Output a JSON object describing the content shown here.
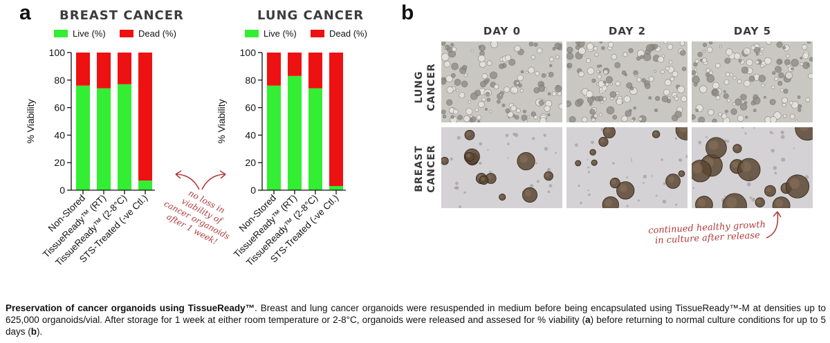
{
  "panel_a": {
    "letter": "a"
  },
  "panel_b": {
    "letter": "b"
  },
  "legend": {
    "live": "Live (%)",
    "dead": "Dead (%)"
  },
  "colors": {
    "live": "#33ee33",
    "dead": "#ee1111",
    "annotation": "#b23a3a"
  },
  "chart_data": [
    {
      "type": "bar",
      "stacked": true,
      "title": "BREAST CANCER",
      "ylabel": "% Viability",
      "ylim": [
        0,
        100
      ],
      "yticks": [
        0,
        20,
        40,
        60,
        80,
        100
      ],
      "categories": [
        "Non-Stored",
        "TissueReady™ (RT)",
        "TissueReady™ (2-8°C)",
        "STS-Treated (-ve Ctl.)"
      ],
      "series": [
        {
          "name": "Live (%)",
          "values": [
            76,
            74,
            77,
            7
          ]
        },
        {
          "name": "Dead (%)",
          "values": [
            24,
            26,
            23,
            93
          ]
        }
      ],
      "legend_position": "top"
    },
    {
      "type": "bar",
      "stacked": true,
      "title": "LUNG CANCER",
      "ylabel": "% Viability",
      "ylim": [
        0,
        100
      ],
      "yticks": [
        0,
        20,
        40,
        60,
        80,
        100
      ],
      "categories": [
        "Non-Stored",
        "TissueReady™ (RT)",
        "TissueReady™ (2-8°C)",
        "STS-Treated (-ve Ctl.)"
      ],
      "series": [
        {
          "name": "Live (%)",
          "values": [
            76,
            83,
            74,
            3
          ]
        },
        {
          "name": "Dead (%)",
          "values": [
            24,
            17,
            26,
            97
          ]
        }
      ],
      "legend_position": "top"
    }
  ],
  "annotations": {
    "viability_note": [
      "no loss in",
      "viability of",
      "cancer organoids",
      "after 1 week!"
    ],
    "growth_note": [
      "continued healthy growth",
      "in culture after release"
    ]
  },
  "micrographs": {
    "days": [
      "DAY 0",
      "DAY 2",
      "DAY 5"
    ],
    "rows": [
      {
        "label_lines": [
          "LUNG",
          "CANCER"
        ]
      },
      {
        "label_lines": [
          "BREAST",
          "CANCER"
        ]
      }
    ]
  },
  "caption": {
    "bold_lead": "Preservation of cancer organoids using TissueReady™",
    "sentence1": ". Breast and lung cancer organoids were resuspended in medium before being encapsulated using TissueReady™-M at densities up to 625,000 organoids/vial. After storage for 1 week at either room temperature or 2-8°C, organoids were released and assesed for % viability (",
    "ref_a": "a",
    "middle": ") before returning to normal culture conditions for up to 5 days (",
    "ref_b": "b",
    "end": ")."
  }
}
